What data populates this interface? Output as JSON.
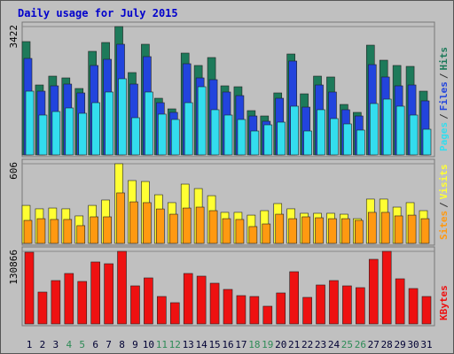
{
  "chart_data": {
    "type": "bar",
    "title": "Daily usage for July 2015",
    "categories": [
      "1",
      "2",
      "3",
      "4",
      "5",
      "6",
      "7",
      "8",
      "9",
      "10",
      "11",
      "12",
      "13",
      "14",
      "15",
      "16",
      "17",
      "18",
      "19",
      "20",
      "21",
      "22",
      "23",
      "24",
      "25",
      "26",
      "27",
      "28",
      "29",
      "30",
      "31"
    ],
    "weekend_days": [
      4,
      5,
      11,
      12,
      18,
      19,
      25,
      26
    ],
    "label_color": "#000033",
    "weekend_label_color": "#2e8b57",
    "legend_separator": "/",
    "panels": [
      {
        "ylim": [
          0,
          3422
        ],
        "yticks": [
          3422
        ],
        "series": [
          {
            "name": "Pages",
            "color": "#33ddee",
            "values": [
              1699,
              1062,
              1156,
              1251,
              1109,
              1392,
              1676,
              2030,
              991,
              1676,
              1086,
              944,
              1392,
              1817,
              1204,
              1062,
              944,
              637,
              802,
              873,
              1298,
              637,
              1204,
              968,
              826,
              661,
              1369,
              1487,
              1298,
              1062,
              684
            ]
          },
          {
            "name": "Files",
            "color": "#2244dd",
            "values": [
              2572,
              1699,
              1841,
              1888,
              1652,
              2384,
              2549,
              2950,
              1888,
              2620,
              1392,
              1133,
              2431,
              2053,
              2006,
              1676,
              1581,
              1038,
              897,
              1510,
              2502,
              1274,
              1864,
              1676,
              1204,
              1038,
              2407,
              2077,
              1841,
              1864,
              1440
            ]
          },
          {
            "name": "Hits",
            "color": "#1d7a5a",
            "values": [
              3021,
              1864,
              2100,
              2053,
              1770,
              2761,
              2997,
              3422,
              2195,
              2950,
              1510,
              1227,
              2714,
              2384,
              2596,
              1841,
              1817,
              1180,
              1038,
              1652,
              2690,
              1628,
              2100,
              2077,
              1345,
              1133,
              2926,
              2525,
              2384,
              2360,
              1699
            ]
          }
        ]
      },
      {
        "ylim": [
          0,
          606
        ],
        "yticks": [
          606
        ],
        "series": [
          {
            "name": "Sites",
            "color": "#ff9911",
            "values": [
              175,
              188,
              182,
              182,
              135,
              202,
              202,
              384,
              316,
              310,
              262,
              222,
              269,
              276,
              249,
              188,
              182,
              128,
              148,
              222,
              188,
              202,
              195,
              188,
              188,
              175,
              236,
              236,
              209,
              215,
              188
            ]
          },
          {
            "name": "Visits",
            "color": "#ffff33",
            "values": [
              289,
              263,
              269,
              263,
              209,
              289,
              330,
              606,
              478,
              471,
              370,
              310,
              451,
              417,
              363,
              236,
              236,
              215,
              249,
              303,
              263,
              229,
              229,
              229,
              222,
              188,
              337,
              337,
              276,
              310,
              249
            ]
          }
        ]
      },
      {
        "ylim": [
          0,
          130866
        ],
        "yticks": [
          130866
        ],
        "series": [
          {
            "name": "KBytes",
            "color": "#ee1111",
            "values": [
              129276,
              57456,
              78204,
              90972,
              76608,
              111720,
              108528,
              130866,
              68628,
              82992,
              49476,
              38304,
              90972,
              86184,
              73416,
              62244,
              51072,
              49476,
              31920,
              55860,
              94164,
              47880,
              70224,
              78204,
              68628,
              65436,
              116508,
              130866,
              81396,
              63840,
              49476
            ]
          }
        ]
      }
    ]
  }
}
